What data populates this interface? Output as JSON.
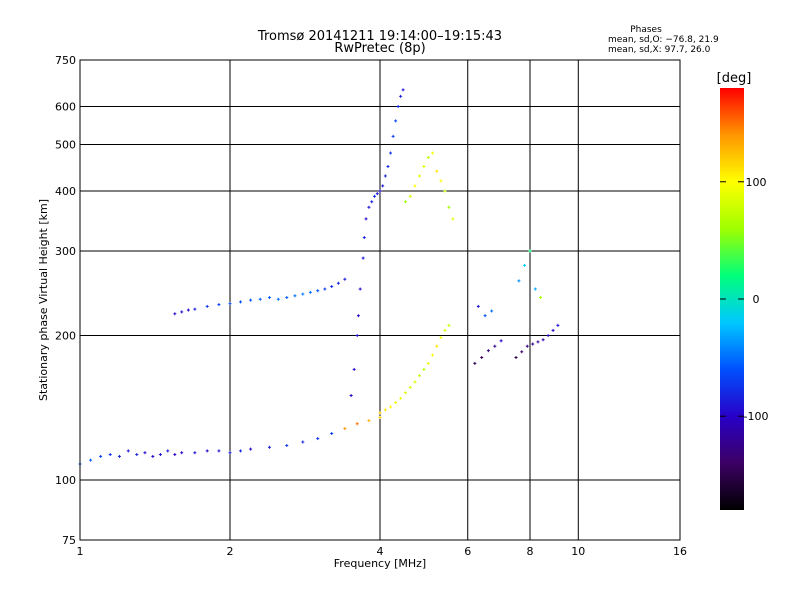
{
  "chart_data": {
    "type": "scatter",
    "title": "Tromsø 20141211 19:14:00–19:15:43",
    "subtitle": "RwPretec (8p)",
    "xlabel": "Frequency [MHz]",
    "ylabel": "Stationary phase Virtual Height [km]",
    "x_scale": "log",
    "y_scale": "log",
    "xlim": [
      1,
      16
    ],
    "ylim": [
      75,
      750
    ],
    "x_ticks": [
      1,
      2,
      4,
      6,
      8,
      10,
      16
    ],
    "y_ticks": [
      75,
      100,
      200,
      300,
      400,
      500,
      600,
      750
    ],
    "grid": true,
    "stats": {
      "heading": "Phases",
      "line1": "mean, sd,O: −76.8, 21.9",
      "line2": "mean, sd,X:  97.7, 26.0"
    },
    "colorbar": {
      "label": "[deg]",
      "range": [
        -180,
        180
      ],
      "ticks": [
        100,
        0,
        -100
      ],
      "colors": [
        "#000000",
        "#3c0064",
        "#2800c8",
        "#0050ff",
        "#00c8ff",
        "#00ff7a",
        "#a0ff00",
        "#ffff00",
        "#ff9600",
        "#ff0000"
      ]
    },
    "series": [
      {
        "x": [
          1.0,
          1.05,
          1.1,
          1.15,
          1.2,
          1.25,
          1.3,
          1.35,
          1.4,
          1.45,
          1.5,
          1.55,
          1.6,
          1.7,
          1.8,
          1.9,
          2.0,
          2.1,
          2.2,
          2.4,
          2.6,
          2.8,
          3.0,
          3.2,
          3.4,
          3.6,
          3.8,
          4.0
        ],
        "y": [
          108,
          110,
          112,
          113,
          112,
          115,
          113,
          114,
          112,
          113,
          115,
          113,
          114,
          114,
          115,
          115,
          114,
          115,
          116,
          117,
          118,
          120,
          122,
          125,
          128,
          131,
          133,
          135
        ],
        "phase": [
          -60,
          -55,
          -70,
          -75,
          -80,
          -90,
          -85,
          -95,
          -100,
          -90,
          -85,
          -100,
          -95,
          -90,
          -100,
          -90,
          -85,
          -80,
          -95,
          -85,
          -70,
          -80,
          -75,
          -70,
          140,
          150,
          130,
          120
        ]
      },
      {
        "x": [
          1.55,
          1.6,
          1.65,
          1.7,
          1.8,
          1.9,
          2.0,
          2.1,
          2.2,
          2.3,
          2.4,
          2.5,
          2.6,
          2.7,
          2.8,
          2.9,
          3.0,
          3.1,
          3.2,
          3.3,
          3.4
        ],
        "y": [
          222,
          224,
          226,
          227,
          230,
          232,
          233,
          235,
          237,
          238,
          240,
          238,
          240,
          242,
          244,
          246,
          248,
          250,
          253,
          257,
          262
        ],
        "phase": [
          -95,
          -90,
          -100,
          -85,
          -75,
          -70,
          -65,
          -60,
          -60,
          -55,
          -55,
          -50,
          -55,
          -50,
          -45,
          -50,
          -60,
          -70,
          -75,
          -80,
          -85
        ]
      },
      {
        "x": [
          3.5,
          3.55,
          3.6,
          3.62,
          3.65,
          3.7,
          3.72,
          3.75,
          3.8,
          3.85,
          3.9,
          3.95,
          4.0
        ],
        "y": [
          150,
          170,
          200,
          220,
          250,
          290,
          320,
          350,
          370,
          380,
          390,
          395,
          400
        ],
        "phase": [
          -100,
          -95,
          -90,
          -100,
          -95,
          -90,
          -85,
          -95,
          -90,
          -85,
          -80,
          -90,
          -95
        ]
      },
      {
        "x": [
          4.05,
          4.1,
          4.15,
          4.2,
          4.25,
          4.3,
          4.35,
          4.4,
          4.45
        ],
        "y": [
          410,
          430,
          450,
          480,
          520,
          560,
          600,
          630,
          650
        ],
        "phase": [
          -90,
          -85,
          -80,
          -75,
          -70,
          -65,
          -80,
          -85,
          -90
        ]
      },
      {
        "x": [
          4.0,
          4.1,
          4.2,
          4.3,
          4.4,
          4.5,
          4.6,
          4.7,
          4.8,
          4.9,
          5.0,
          5.1,
          5.2,
          5.3,
          5.4,
          5.5
        ],
        "y": [
          138,
          140,
          142,
          145,
          148,
          152,
          156,
          160,
          165,
          170,
          175,
          182,
          190,
          198,
          205,
          210
        ],
        "phase": [
          120,
          110,
          100,
          95,
          90,
          85,
          80,
          85,
          75,
          70,
          90,
          100,
          110,
          95,
          80,
          75
        ]
      },
      {
        "x": [
          4.5,
          4.6,
          4.7,
          4.8,
          4.9,
          5.0,
          5.1,
          5.2,
          5.3,
          5.4,
          5.5,
          5.6
        ],
        "y": [
          380,
          390,
          410,
          430,
          450,
          470,
          480,
          440,
          420,
          400,
          370,
          350
        ],
        "phase": [
          60,
          80,
          100,
          90,
          85,
          70,
          95,
          110,
          100,
          75,
          60,
          90
        ]
      },
      {
        "x": [
          6.2,
          6.4,
          6.6,
          6.8,
          7.0,
          6.3,
          6.5,
          6.7
        ],
        "y": [
          175,
          180,
          186,
          190,
          195,
          230,
          220,
          225
        ],
        "phase": [
          -150,
          -140,
          -130,
          -120,
          -100,
          -90,
          -60,
          -50
        ]
      },
      {
        "x": [
          7.5,
          7.7,
          7.9,
          8.1,
          8.3,
          8.5,
          8.7,
          8.9,
          9.1,
          7.6,
          7.8,
          8.0,
          8.2,
          8.4
        ],
        "y": [
          180,
          185,
          190,
          192,
          194,
          196,
          200,
          205,
          210,
          260,
          280,
          300,
          250,
          240
        ],
        "phase": [
          -150,
          -140,
          -130,
          -120,
          -120,
          -110,
          -100,
          -100,
          -90,
          -40,
          -20,
          20,
          -30,
          60
        ]
      }
    ]
  }
}
